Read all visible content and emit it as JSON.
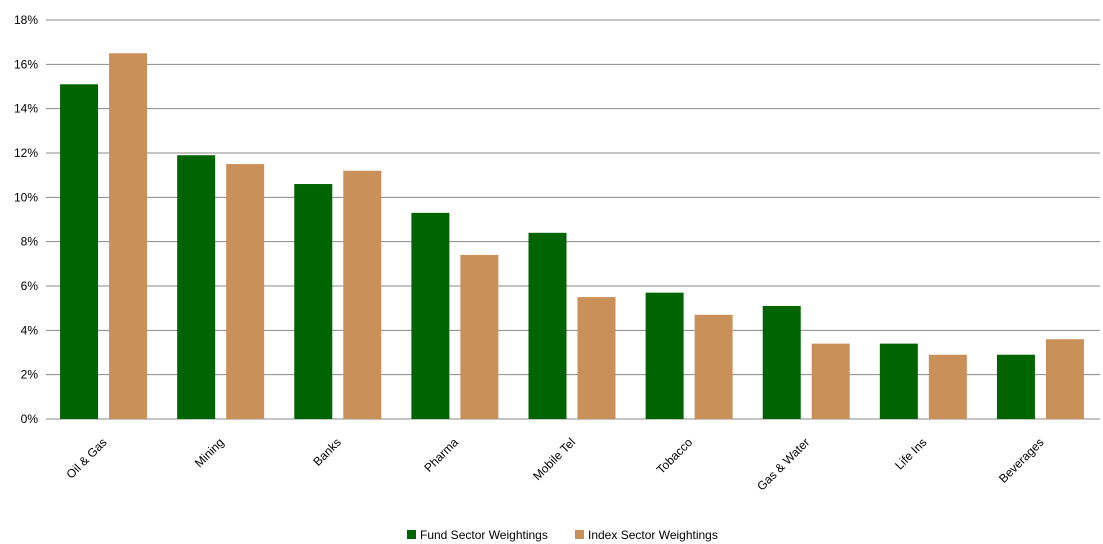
{
  "chart_data": {
    "type": "bar",
    "categories": [
      "Oil & Gas",
      "Mining",
      "Banks",
      "Pharma",
      "Mobile Tel",
      "Tobacco",
      "Gas & Water",
      "Life Ins",
      "Beverages"
    ],
    "series": [
      {
        "name": "Fund Sector Weightings",
        "values": [
          15.1,
          11.9,
          10.6,
          9.3,
          8.4,
          5.7,
          5.1,
          3.4,
          2.9
        ],
        "color": "#006400"
      },
      {
        "name": "Index Sector Weightings",
        "values": [
          16.5,
          11.5,
          11.2,
          7.4,
          5.5,
          4.7,
          3.4,
          2.9,
          3.6
        ],
        "color": "#C9905A"
      }
    ],
    "ylim": [
      0,
      18
    ],
    "yticks": [
      0,
      2,
      4,
      6,
      8,
      10,
      12,
      14,
      16,
      18
    ],
    "ytick_labels": [
      "0%",
      "2%",
      "4%",
      "6%",
      "8%",
      "10%",
      "12%",
      "14%",
      "16%",
      "18%"
    ],
    "grid": true,
    "legend_position": "bottom"
  }
}
